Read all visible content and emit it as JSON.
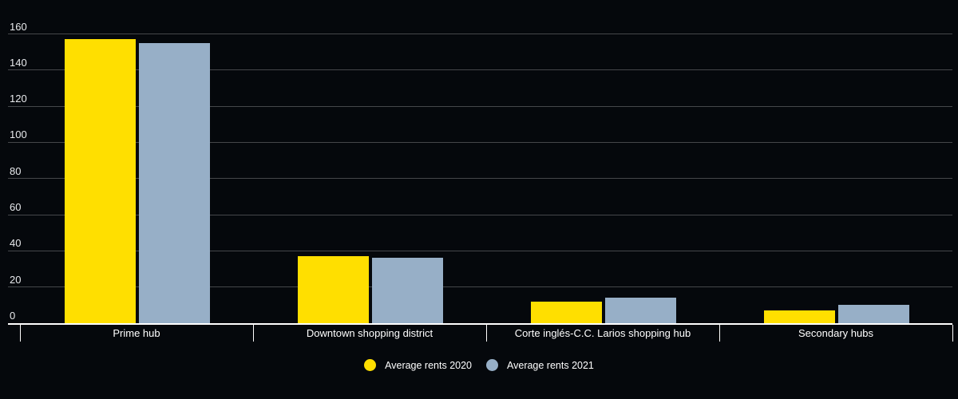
{
  "chart_data": {
    "type": "bar",
    "title": "",
    "xlabel": "",
    "ylabel": "",
    "categories": [
      "Prime hub",
      "Downtown shopping district",
      "Corte inglés-C.C. Larios shopping hub",
      "Secondary hubs"
    ],
    "series": [
      {
        "name": "Average rents 2020",
        "color": "#ffdf00",
        "values": [
          157,
          37,
          12,
          7
        ]
      },
      {
        "name": "Average rents 2021",
        "color": "#97afc7",
        "values": [
          155,
          36,
          14,
          10
        ]
      }
    ],
    "ylim": [
      0,
      160
    ],
    "yticks": [
      0,
      20,
      40,
      60,
      80,
      100,
      120,
      140,
      160
    ],
    "grid": true,
    "legend_position": "bottom"
  },
  "colors": {
    "background": "#05080c",
    "gridline": "rgba(255,255,255,0.26)",
    "axis_line": "#ffffff",
    "tick_text": "#e8eaed",
    "category_text": "#ffffff",
    "series_2020": "#ffdf00",
    "series_2021": "#97afc7"
  }
}
